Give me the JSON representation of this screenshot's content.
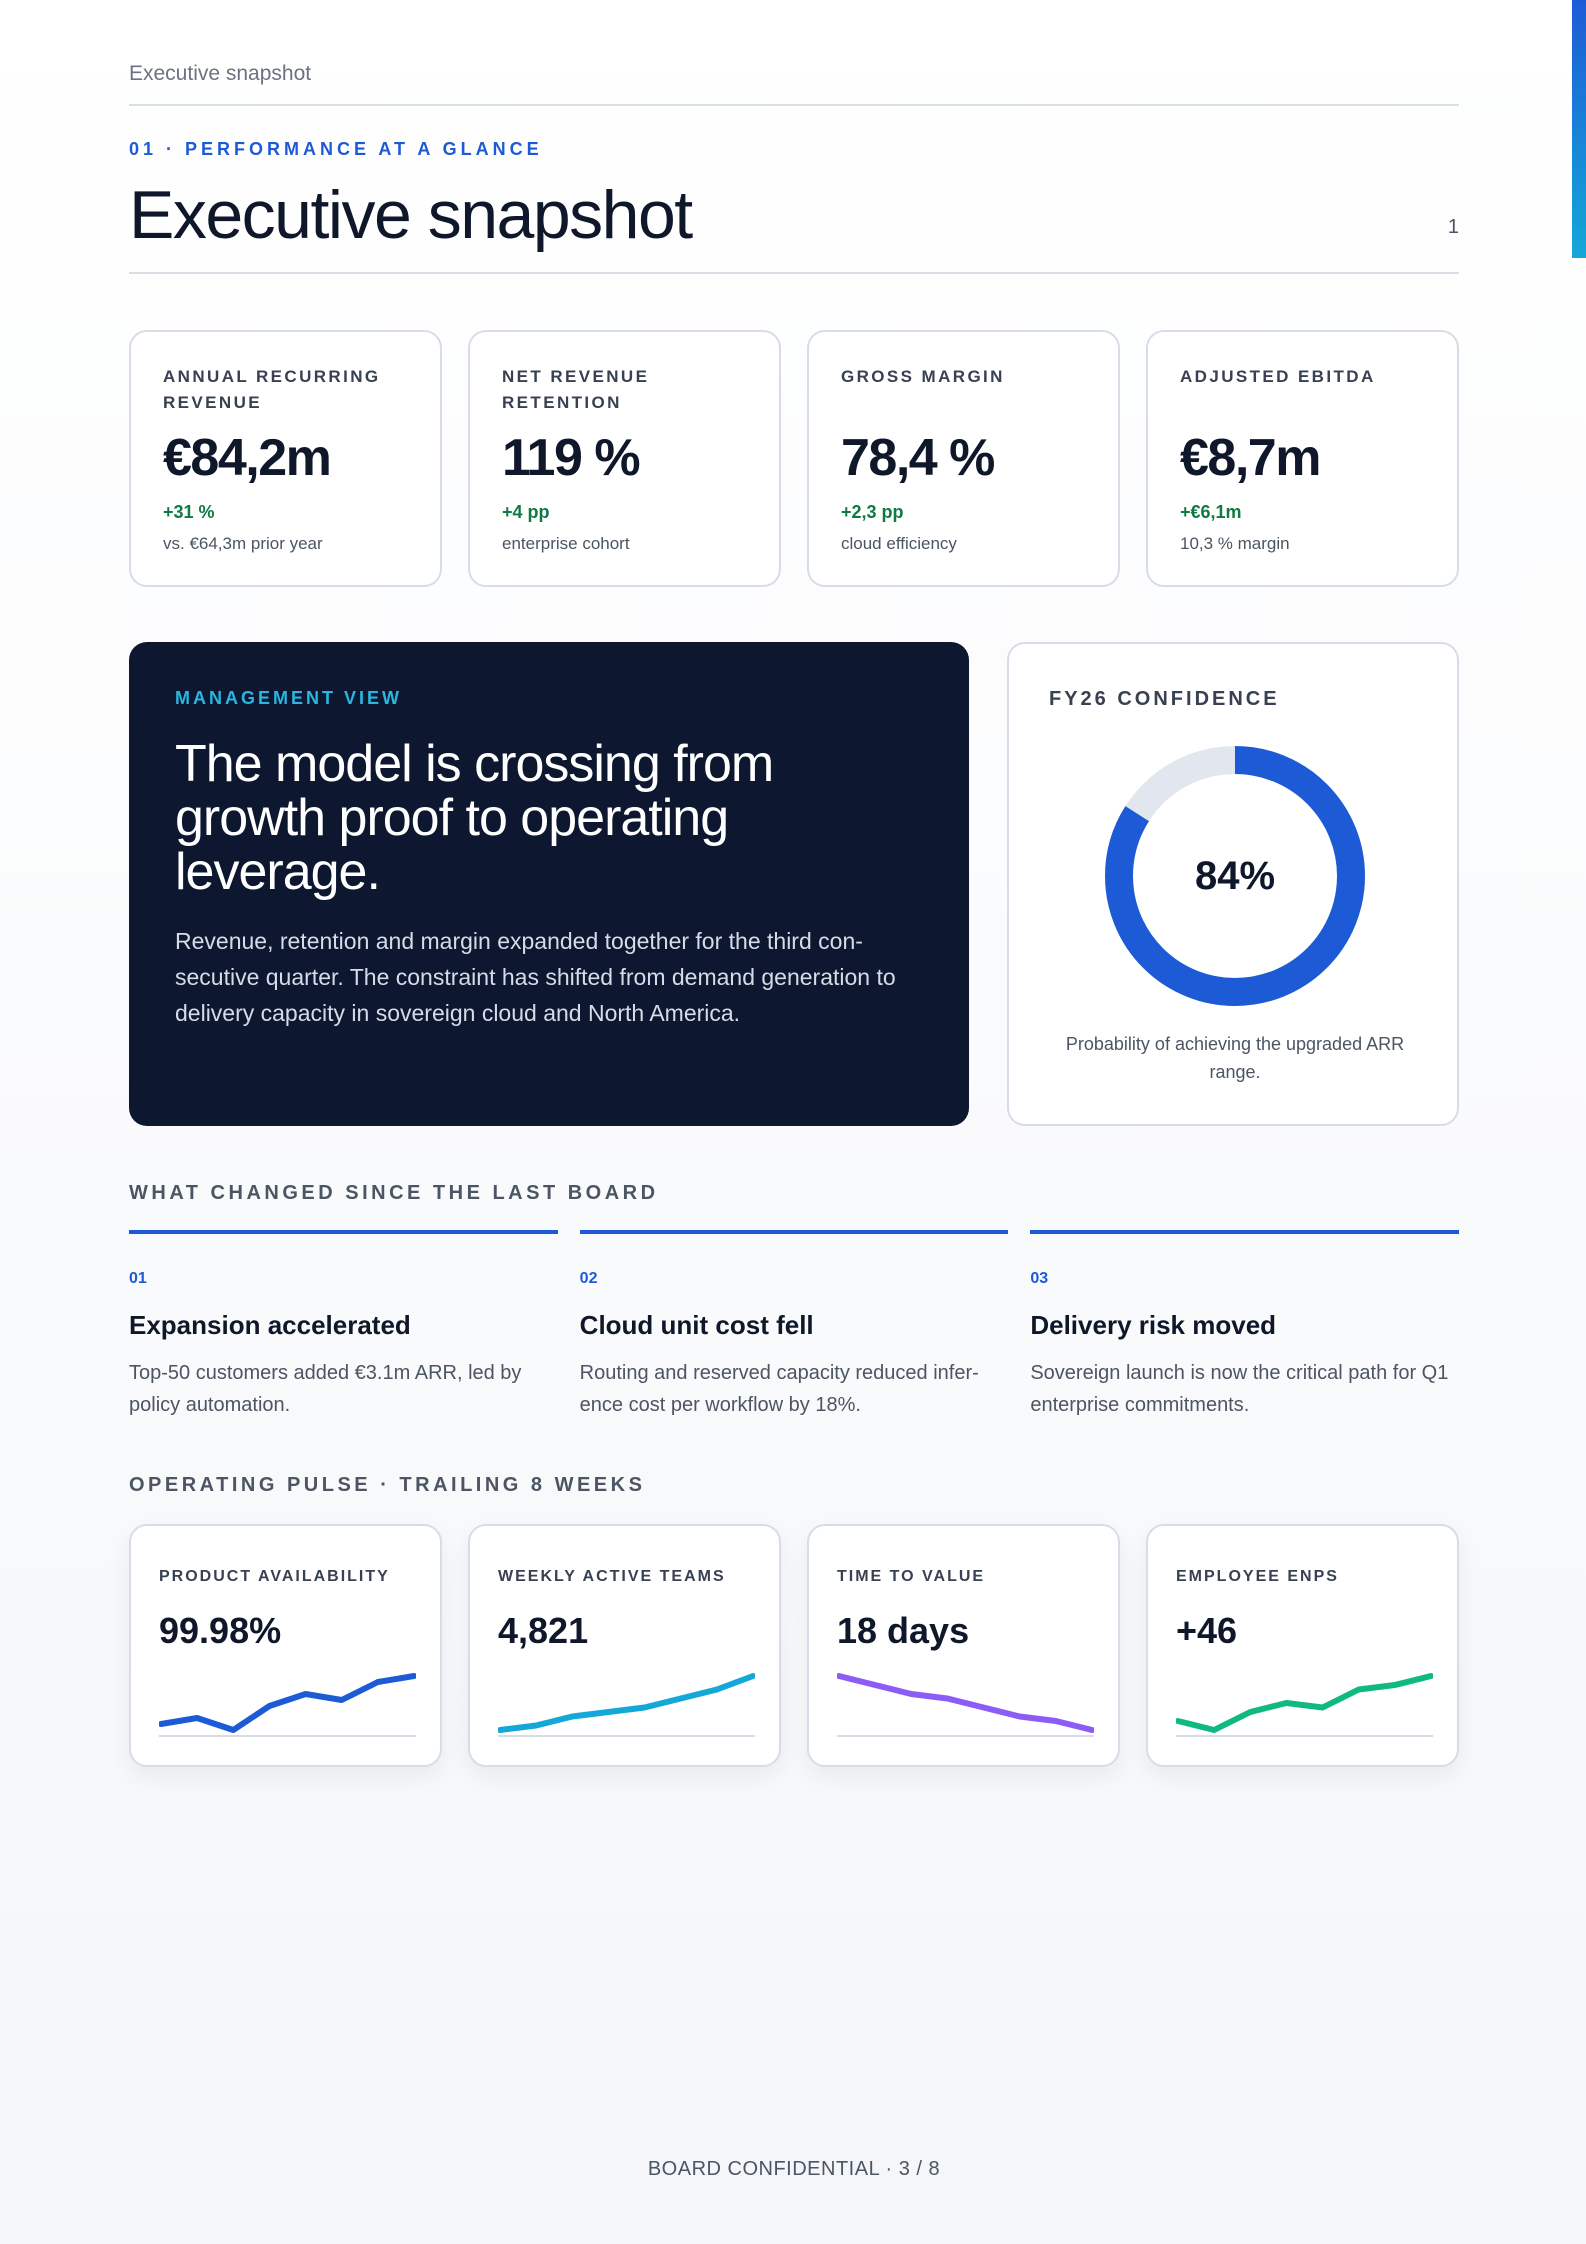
{
  "running_head": "Executive snapshot",
  "kicker": "01 · PERFORMANCE AT A GLANCE",
  "title": "Executive snapshot",
  "page_number": "1",
  "kpis": [
    {
      "label": "ANNUAL RECURRING REVENUE",
      "value": "€84,2m",
      "delta": "+31 %",
      "note": "vs. €64,3m prior year"
    },
    {
      "label": "NET REVENUE RETENTION",
      "value": "119 %",
      "delta": "+4 pp",
      "note": "enterprise cohort"
    },
    {
      "label": "GROSS MARGIN",
      "value": "78,4 %",
      "delta": "+2,3 pp",
      "note": "cloud efficiency"
    },
    {
      "label": "ADJUSTED EBITDA",
      "value": "€8,7m",
      "delta": "+€6,1m",
      "note": "10,3 % margin"
    }
  ],
  "management": {
    "kicker": "MANAGEMENT VIEW",
    "headline": "The model is crossing from growth proof to operating leverage.",
    "body": "Revenue, retention and margin expanded together for the third con- secutive quarter. The constraint has shifted from demand generation to delivery capacity in sovereign cloud and North America."
  },
  "confidence": {
    "kicker": "FY26 CONFIDENCE",
    "value_label": "84%",
    "fraction": 0.84,
    "caption": "Probability of achieving the upgraded ARR range.",
    "colors": {
      "fill": "#1d5bd6",
      "track": "#e2e7ef"
    }
  },
  "changes_label": "WHAT CHANGED SINCE THE LAST BOARD",
  "changes": [
    {
      "num": "01",
      "title": "Expansion accelerated",
      "body": "Top-50 customers added €3.1m ARR, led by policy automation."
    },
    {
      "num": "02",
      "title": "Cloud unit cost fell",
      "body": "Routing and reserved capacity reduced infer- ence cost per workflow by 18%."
    },
    {
      "num": "03",
      "title": "Delivery risk moved",
      "body": "Sovereign launch is now the critical path for Q1 enterprise commitments."
    }
  ],
  "pulse_label": "OPERATING PULSE · TRAILING 8 WEEKS",
  "pulse": [
    {
      "label": "PRODUCT AVAILABILITY",
      "value": "99.98%",
      "color": "#1d5bd6",
      "series": [
        3,
        4,
        2,
        6,
        8,
        7,
        10,
        11
      ]
    },
    {
      "label": "WEEKLY ACTIVE TEAMS",
      "value": "4,821",
      "color": "#13a8d8",
      "series": [
        1,
        2,
        4,
        5,
        6,
        8,
        10,
        13
      ]
    },
    {
      "label": "TIME TO VALUE",
      "value": "18 days",
      "color": "#8b5cf6",
      "series": [
        13,
        11,
        9,
        8,
        6,
        4,
        3,
        1
      ]
    },
    {
      "label": "EMPLOYEE ENPS",
      "value": "+46",
      "color": "#10b981",
      "series": [
        3,
        1,
        5,
        7,
        6,
        10,
        11,
        13
      ]
    }
  ],
  "footer": "BOARD CONFIDENTIAL · 3 / 8"
}
